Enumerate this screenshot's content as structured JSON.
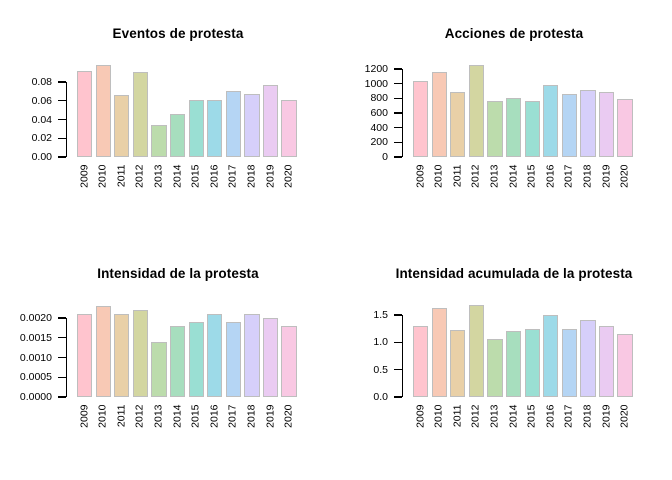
{
  "figure": {
    "background": "#ffffff",
    "text_color": "#000000",
    "bar_border_color": "#bebebe",
    "axis_color": "#000000"
  },
  "palette": [
    "#ffc4ce",
    "#f8c9b5",
    "#e9d0a7",
    "#d3d6a1",
    "#bcdcac",
    "#a7debe",
    "#9adfd3",
    "#9ddae8",
    "#b5d5f4",
    "#d6cffa",
    "#eacbf2",
    "#f9c8e3"
  ],
  "categories": [
    "2009",
    "2010",
    "2011",
    "2012",
    "2013",
    "2014",
    "2015",
    "2016",
    "2017",
    "2018",
    "2019",
    "2020"
  ],
  "chart_data": [
    {
      "type": "bar",
      "title": "Eventos de protesta",
      "xlabel": "",
      "ylabel": "",
      "grid": false,
      "legend": false,
      "categories": [
        "2009",
        "2010",
        "2011",
        "2012",
        "2013",
        "2014",
        "2015",
        "2016",
        "2017",
        "2018",
        "2019",
        "2020"
      ],
      "values": [
        0.092,
        0.098,
        0.066,
        0.091,
        0.034,
        0.046,
        0.061,
        0.061,
        0.07,
        0.067,
        0.077,
        0.061
      ],
      "yticks": [
        "0.00",
        "0.02",
        "0.04",
        "0.06",
        "0.08"
      ],
      "ylim": [
        0,
        0.08
      ]
    },
    {
      "type": "bar",
      "title": "Acciones de protesta",
      "xlabel": "",
      "ylabel": "",
      "grid": false,
      "legend": false,
      "categories": [
        "2009",
        "2010",
        "2011",
        "2012",
        "2013",
        "2014",
        "2015",
        "2016",
        "2017",
        "2018",
        "2019",
        "2020"
      ],
      "values": [
        1040,
        1155,
        890,
        1255,
        770,
        810,
        770,
        985,
        855,
        915,
        890,
        785
      ],
      "yticks": [
        "0",
        "200",
        "400",
        "600",
        "800",
        "1000",
        "1200"
      ],
      "ylim": [
        0,
        1200
      ]
    },
    {
      "type": "bar",
      "title": "Intensidad de la protesta",
      "xlabel": "",
      "ylabel": "",
      "grid": false,
      "legend": false,
      "categories": [
        "2009",
        "2010",
        "2011",
        "2012",
        "2013",
        "2014",
        "2015",
        "2016",
        "2017",
        "2018",
        "2019",
        "2020"
      ],
      "values": [
        0.0021,
        0.0023,
        0.0021,
        0.0022,
        0.0014,
        0.0018,
        0.0019,
        0.0021,
        0.0019,
        0.0021,
        0.002,
        0.0018
      ],
      "yticks": [
        "0.0000",
        "0.0005",
        "0.0010",
        "0.0015",
        "0.0020"
      ],
      "ylim": [
        0,
        0.002
      ]
    },
    {
      "type": "bar",
      "title": "Intensidad acumulada de la protesta",
      "xlabel": "",
      "ylabel": "",
      "grid": false,
      "legend": false,
      "categories": [
        "2009",
        "2010",
        "2011",
        "2012",
        "2013",
        "2014",
        "2015",
        "2016",
        "2017",
        "2018",
        "2019",
        "2020"
      ],
      "values": [
        1.29,
        1.62,
        1.23,
        1.68,
        1.06,
        1.21,
        1.25,
        1.5,
        1.25,
        1.41,
        1.3,
        1.15
      ],
      "yticks": [
        "0.0",
        "0.5",
        "1.0",
        "1.5"
      ],
      "ylim": [
        0,
        1.5
      ]
    }
  ]
}
